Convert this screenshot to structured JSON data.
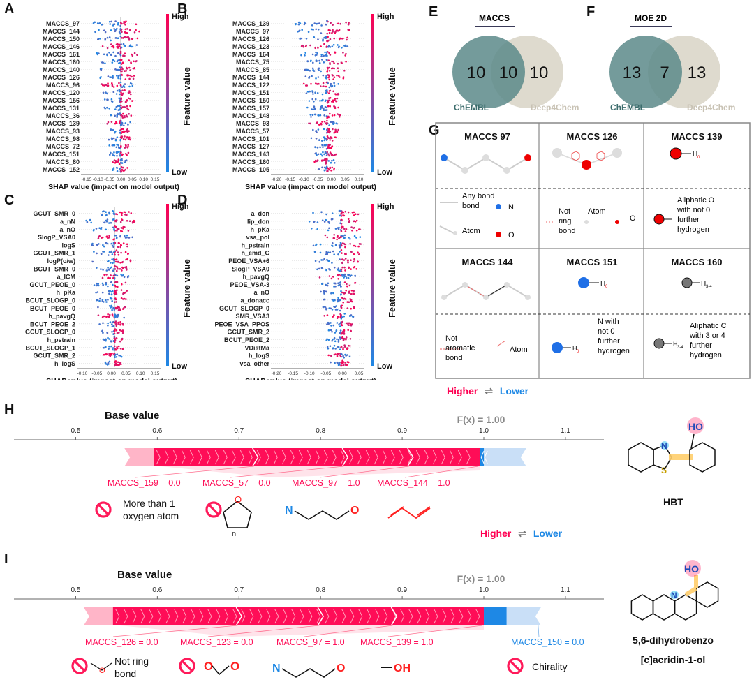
{
  "panel_labels": {
    "A": "A",
    "B": "B",
    "C": "C",
    "D": "D",
    "E": "E",
    "F": "F",
    "G": "G",
    "H": "H",
    "I": "I"
  },
  "colorbar": {
    "high": "High",
    "low": "Low",
    "title": "Feature value",
    "colors": {
      "high": "#ff0052",
      "low": "#1e88e5"
    }
  },
  "shap_xlabel": "SHAP value (impact on model output)",
  "chart_data": [
    {
      "type": "scatter",
      "panel": "A",
      "features": [
        "MACCS_97",
        "MACCS_144",
        "MACCS_150",
        "MACCS_146",
        "MACCS_161",
        "MACCS_160",
        "MACCS_140",
        "MACCS_126",
        "MACCS_96",
        "MACCS_120",
        "MACCS_156",
        "MACCS_131",
        "MACCS_36",
        "MACCS_139",
        "MACCS_93",
        "MACCS_98",
        "MACCS_72",
        "MACCS_151",
        "MACCS_80",
        "MACCS_152"
      ],
      "xticks": [
        "-0.15",
        "-0.10",
        "-0.05",
        "0.00",
        "0.05",
        "0.10",
        "0.15"
      ],
      "xlim": [
        -0.2,
        0.2
      ],
      "xlabel": "SHAP value (impact on model output)"
    },
    {
      "type": "scatter",
      "panel": "B",
      "features": [
        "MACCS_139",
        "MACCS_97",
        "MACCS_126",
        "MACCS_123",
        "MACCS_164",
        "MACCS_75",
        "MACCS_85",
        "MACCS_144",
        "MACCS_122",
        "MACCS_151",
        "MACCS_150",
        "MACCS_157",
        "MACCS_148",
        "MACCS_93",
        "MACCS_57",
        "MACCS_101",
        "MACCS_127",
        "MACCS_143",
        "MACCS_160",
        "MACCS_105"
      ],
      "xticks": [
        "-0.20",
        "-0.15",
        "-0.10",
        "-0.05",
        "0.00",
        "0.05",
        "0.10"
      ],
      "xlim": [
        -0.2,
        0.12
      ],
      "xlabel": "SHAP value (impact on model output)"
    },
    {
      "type": "scatter",
      "panel": "C",
      "features": [
        "GCUT_SMR_0",
        "a_nN",
        "a_nO",
        "SlogP_VSA0",
        "logS",
        "GCUT_SMR_1",
        "logP(o/w)",
        "BCUT_SMR_0",
        "a_ICM",
        "GCUT_PEOE_0",
        "h_pKa",
        "BCUT_SLOGP_0",
        "BCUT_PEOE_0",
        "h_pavgQ",
        "BCUT_PEOE_2",
        "GCUT_SLOGP_0",
        "h_pstrain",
        "BCUT_SLOGP_1",
        "GCUT_SMR_2",
        "h_logS"
      ],
      "xticks": [
        "-0.10",
        "-0.05",
        "0.00",
        "0.05",
        "0.10",
        "0.15"
      ],
      "xlim": [
        -0.13,
        0.17
      ],
      "xlabel": "SHAP value (impact on model output)"
    },
    {
      "type": "scatter",
      "panel": "D",
      "features": [
        "a_don",
        "lip_don",
        "h_pKa",
        "vsa_pol",
        "h_pstrain",
        "h_emd_C",
        "PEOE_VSA+6",
        "SlogP_VSA0",
        "h_pavgQ",
        "PEOE_VSA-3",
        "a_nO",
        "a_donacc",
        "GCUT_SLOGP_0",
        "SMR_VSA3",
        "PEOE_VSA_PPOS",
        "GCUT_SMR_2",
        "BCUT_PEOE_2",
        "VDistMa",
        "h_logS",
        "vsa_other"
      ],
      "xticks": [
        "-0.20",
        "-0.15",
        "-0.10",
        "-0.05",
        "0.00",
        "0.05"
      ],
      "xlim": [
        -0.22,
        0.07
      ],
      "xlabel": "SHAP value (impact on model output)"
    },
    {
      "type": "venn",
      "panel": "E",
      "title": "MACCS",
      "sets": [
        "ChEMBL",
        "Deep4Chem"
      ],
      "values": {
        "left_only": 10,
        "overlap": 10,
        "right_only": 10
      },
      "colors": {
        "left": "#5c8a8a",
        "right": "#d8d3c6"
      }
    },
    {
      "type": "venn",
      "panel": "F",
      "title": "MOE 2D",
      "sets": [
        "ChEMBL",
        "Deep4Chem"
      ],
      "values": {
        "left_only": 13,
        "overlap": 7,
        "right_only": 13
      },
      "colors": {
        "left": "#5c8a8a",
        "right": "#d8d3c6"
      }
    },
    {
      "type": "bar",
      "panel": "H",
      "axis_ticks": [
        "0.5",
        "0.6",
        "0.7",
        "0.8",
        "0.9",
        "1.0",
        "1.1"
      ],
      "xlim": [
        0.45,
        1.13
      ],
      "base_value": 0.57,
      "fx": 1.0,
      "fx_label": "F(x) = 1.00",
      "base_label": "Base value",
      "legend_higher": "Higher",
      "legend_lower": "Lower",
      "positive_end": 0.995,
      "negative_end": 1.052,
      "features": [
        {
          "label": "MACCS_159 = 0.0",
          "start": 0.57,
          "end": 0.72
        },
        {
          "label": "MACCS_57 = 0.0",
          "start": 0.72,
          "end": 0.83
        },
        {
          "label": "MACCS_97 = 1.0",
          "start": 0.83,
          "end": 0.91
        },
        {
          "label": "MACCS_144 = 1.0",
          "start": 0.91,
          "end": 0.995
        }
      ],
      "substructures": [
        "More than 1 oxygen atom",
        "",
        "N … O",
        "diene"
      ],
      "molecule": "HBT"
    },
    {
      "type": "bar",
      "panel": "I",
      "axis_ticks": [
        "0.5",
        "0.6",
        "0.7",
        "0.8",
        "0.9",
        "1.0",
        "1.1"
      ],
      "xlim": [
        0.45,
        1.13
      ],
      "base_value": 0.52,
      "fx": 1.0,
      "fx_label": "F(x) = 1.00",
      "base_label": "Base value",
      "legend_higher": "Higher",
      "legend_lower": "Lower",
      "positive_end": 1.0,
      "negative_end": 1.07,
      "features": [
        {
          "label": "MACCS_126 = 0.0",
          "start": 0.52,
          "end": 0.7
        },
        {
          "label": "MACCS_123 = 0.0",
          "start": 0.7,
          "end": 0.8
        },
        {
          "label": "MACCS_97 = 1.0",
          "start": 0.8,
          "end": 0.89
        },
        {
          "label": "MACCS_139 = 1.0",
          "start": 0.89,
          "end": 1.0
        }
      ],
      "negative_features": [
        {
          "label": "MACCS_150 = 0.0",
          "start": 1.0,
          "end": 1.07
        }
      ],
      "molecule": "5,6-dihydrobenzo [c]acridin-1-ol"
    }
  ],
  "venn_e": {
    "title": "MACCS",
    "left_value": "10",
    "overlap_value": "10",
    "right_value": "10",
    "left_name": "ChEMBL",
    "right_name": "Deep4Chem"
  },
  "venn_f": {
    "title": "MOE 2D",
    "left_value": "13",
    "overlap_value": "7",
    "right_value": "13",
    "left_name": "ChEMBL",
    "right_name": "Deep4Chem"
  },
  "grid_g": {
    "row1": [
      "MACCS 97",
      "MACCS 126",
      "MACCS 139"
    ],
    "row3": [
      "MACCS 144",
      "MACCS 151",
      "MACCS 160"
    ],
    "legend_any_bond": "Any bond",
    "legend_n": "N",
    "legend_atom": "Atom",
    "legend_o": "O",
    "not_ring_bond": "Not ring bond",
    "not_ring_atom": "Atom",
    "not_ring_o": "O",
    "aliphatic_o": "Aliphatic O with not 0 further hydrogen",
    "not_aromatic_bond": "Not aromatic bond",
    "not_aromatic_atom": "Atom",
    "n_no_h": "N with not 0 further hydrogen",
    "aliphatic_c": "Aliphatic C with 3 or 4 further hydrogen",
    "h0": "H",
    "h0_sub": "0",
    "h34_sub": "3-4"
  },
  "legend_hl": {
    "higher": "Higher",
    "lower": "Lower"
  },
  "panel_h": {
    "base_label": "Base value",
    "fx_label": "F(x) = 1.00",
    "ticks": [
      "0.5",
      "0.6",
      "0.7",
      "0.8",
      "0.9",
      "1.0",
      "1.1"
    ],
    "feat1": "MACCS_159 = 0.0",
    "feat2": "MACCS_57 = 0.0",
    "feat3": "MACCS_97 = 1.0",
    "feat4": "MACCS_144 = 1.0",
    "sub1": "More than 1 oxygen atom",
    "mol_name": "HBT",
    "n_atom": "N",
    "o_atom": "O",
    "ring_n": "n",
    "ho": "HO",
    "s_atom": "S"
  },
  "panel_i": {
    "base_label": "Base value",
    "fx_label": "F(x) = 1.00",
    "ticks": [
      "0.5",
      "0.6",
      "0.7",
      "0.8",
      "0.9",
      "1.0",
      "1.1"
    ],
    "feat1": "MACCS_126 = 0.0",
    "feat2": "MACCS_123 = 0.0",
    "feat3": "MACCS_97 = 1.0",
    "feat4": "MACCS_139 = 1.0",
    "neg1": "MACCS_150 = 0.0",
    "sub1": "Not ring bond",
    "sub_o": "O",
    "sub_oh": "OH",
    "chirality": "Chirality",
    "mol_name_1": "5,6-dihydrobenzo",
    "mol_name_2": "[c]acridin-1-ol",
    "n_atom": "N",
    "o_atom": "O",
    "ho": "HO"
  }
}
